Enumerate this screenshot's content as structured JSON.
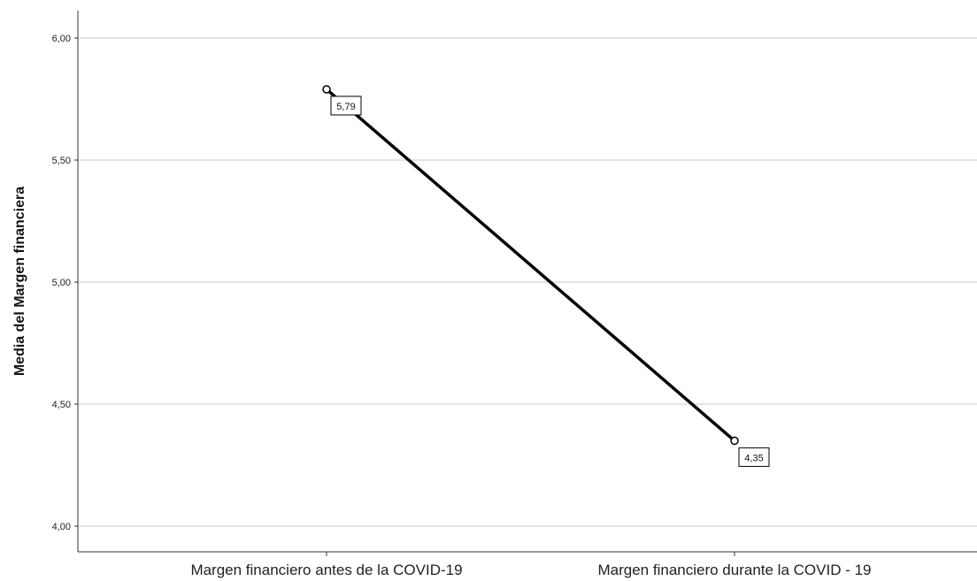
{
  "chart_data": {
    "type": "line",
    "title": "",
    "xlabel": "",
    "ylabel": "Media del Margen financiera",
    "categories": [
      "Margen financiero antes de la COVID-19",
      "Margen financiero durante la COVID - 19"
    ],
    "values": [
      5.79,
      4.35
    ],
    "data_labels": [
      "5,79",
      "4,35"
    ],
    "ylim": [
      3.9,
      6.1
    ],
    "yticks": [
      4.0,
      4.5,
      5.0,
      5.5,
      6.0
    ],
    "ytick_labels": [
      "4,00",
      "4,50",
      "5,00",
      "5,50",
      "6,00"
    ],
    "grid": true,
    "line_color": "#000000",
    "grid_color": "#c8c8c8"
  }
}
